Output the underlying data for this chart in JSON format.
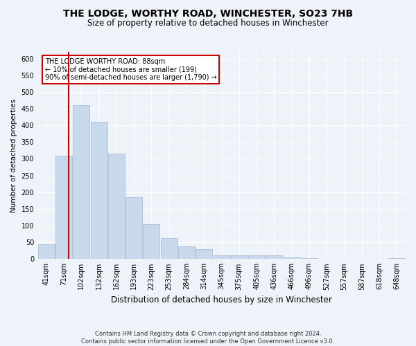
{
  "title": "THE LODGE, WORTHY ROAD, WINCHESTER, SO23 7HB",
  "subtitle": "Size of property relative to detached houses in Winchester",
  "xlabel": "Distribution of detached houses by size in Winchester",
  "ylabel": "Number of detached properties",
  "bar_labels": [
    "41sqm",
    "71sqm",
    "102sqm",
    "132sqm",
    "162sqm",
    "193sqm",
    "223sqm",
    "253sqm",
    "284sqm",
    "314sqm",
    "345sqm",
    "375sqm",
    "405sqm",
    "436sqm",
    "466sqm",
    "496sqm",
    "527sqm",
    "557sqm",
    "587sqm",
    "618sqm",
    "648sqm"
  ],
  "bar_values": [
    45,
    310,
    460,
    410,
    315,
    185,
    105,
    63,
    38,
    30,
    12,
    10,
    10,
    10,
    5,
    3,
    1,
    0,
    0,
    0,
    3
  ],
  "bar_color": "#c9d9ec",
  "bar_edge_color": "#a0b8d8",
  "ylim_max": 620,
  "yticks": [
    0,
    50,
    100,
    150,
    200,
    250,
    300,
    350,
    400,
    450,
    500,
    550,
    600
  ],
  "red_line_x": 1.27,
  "annotation_text": "THE LODGE WORTHY ROAD: 88sqm\n← 10% of detached houses are smaller (199)\n90% of semi-detached houses are larger (1,790) →",
  "annotation_box_facecolor": "#ffffff",
  "annotation_box_edgecolor": "#cc0000",
  "footer_line1": "Contains HM Land Registry data © Crown copyright and database right 2024.",
  "footer_line2": "Contains public sector information licensed under the Open Government Licence v3.0.",
  "background_color": "#eef2f9",
  "grid_color": "#ffffff",
  "title_fontsize": 10,
  "subtitle_fontsize": 8.5,
  "ylabel_fontsize": 7.5,
  "xlabel_fontsize": 8.5,
  "tick_fontsize": 7,
  "annotation_fontsize": 7,
  "footer_fontsize": 6
}
